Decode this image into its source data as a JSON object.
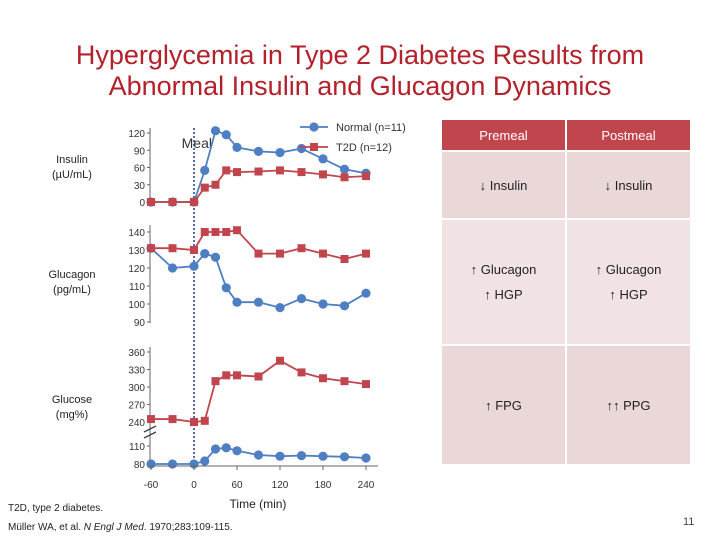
{
  "title": {
    "line1": "Hyperglycemia in Type 2 Diabetes Results from",
    "line2": "Abnormal Insulin and Glucagon Dynamics"
  },
  "colors": {
    "normal": "#4f7fc3",
    "t2d": "#c1454c",
    "header": "#c1454c",
    "cell": "#ead7d8"
  },
  "chart_data": [
    {
      "type": "line",
      "ylabel": "Insulin\n(µU/mL)",
      "yticks": [
        0,
        30,
        60,
        90,
        120
      ],
      "ylim": [
        0,
        125
      ],
      "x": [
        -60,
        -30,
        0,
        15,
        30,
        45,
        60,
        90,
        120,
        150,
        180,
        210,
        240
      ],
      "series": [
        {
          "name": "Normal (n=11)",
          "values": [
            0,
            0,
            0,
            55,
            124,
            117,
            95,
            88,
            86,
            93,
            75,
            57,
            50
          ]
        },
        {
          "name": "T2D (n=12)",
          "values": [
            0,
            0,
            0,
            25,
            30,
            55,
            52,
            53,
            55,
            52,
            48,
            43,
            45
          ]
        }
      ]
    },
    {
      "type": "line",
      "ylabel": "Glucagon\n(pg/mL)",
      "yticks": [
        90,
        100,
        110,
        120,
        130,
        140
      ],
      "ylim": [
        88,
        142
      ],
      "x": [
        -60,
        -30,
        0,
        15,
        30,
        45,
        60,
        90,
        120,
        150,
        180,
        210,
        240
      ],
      "series": [
        {
          "name": "Normal (n=11)",
          "values": [
            131,
            120,
            121,
            128,
            126,
            109,
            101,
            101,
            98,
            103,
            100,
            99,
            106
          ]
        },
        {
          "name": "T2D (n=12)",
          "values": [
            131,
            131,
            130,
            140,
            140,
            140,
            141,
            128,
            128,
            131,
            128,
            125,
            128
          ]
        }
      ]
    },
    {
      "type": "line",
      "ylabel": "Glucose\n(mg%)",
      "yticks": [
        80,
        110,
        240,
        270,
        300,
        330,
        360
      ],
      "axis_break": [
        110,
        240
      ],
      "x": [
        -60,
        -30,
        0,
        15,
        30,
        45,
        60,
        90,
        120,
        150,
        180,
        210,
        240
      ],
      "series": [
        {
          "name": "Normal (n=11)",
          "values": [
            80,
            80,
            80,
            85,
            105,
            107,
            102,
            95,
            93,
            94,
            93,
            92,
            90
          ]
        },
        {
          "name": "T2D (n=12)",
          "values": [
            245,
            245,
            240,
            242,
            310,
            320,
            320,
            318,
            345,
            325,
            315,
            310,
            305
          ]
        }
      ]
    }
  ],
  "annotations": {
    "meal": "Meal"
  },
  "legend": {
    "normal": "Normal (n=11)",
    "t2d": "T2D (n=12)"
  },
  "xaxis": {
    "ticks": [
      "-60",
      "0",
      "60",
      "120",
      "180",
      "240"
    ],
    "tick_values": [
      -60,
      0,
      60,
      120,
      180,
      240
    ],
    "label": "Time (min)"
  },
  "table": {
    "headers": [
      "Premeal",
      "Postmeal"
    ],
    "row1": [
      "↓ Insulin",
      "↓ Insulin"
    ],
    "row2": [
      [
        "↑ Glucagon",
        "↑ HGP"
      ],
      [
        "↑ Glucagon",
        "↑ HGP"
      ]
    ],
    "row3": [
      "↑ FPG",
      "↑↑ PPG"
    ]
  },
  "footnote": "T2D, type 2 diabetes.",
  "citation": {
    "authors": "Müller WA, et al. ",
    "journal": "N Engl J Med",
    "rest": ". 1970;283:109-115."
  },
  "page_number": "11"
}
